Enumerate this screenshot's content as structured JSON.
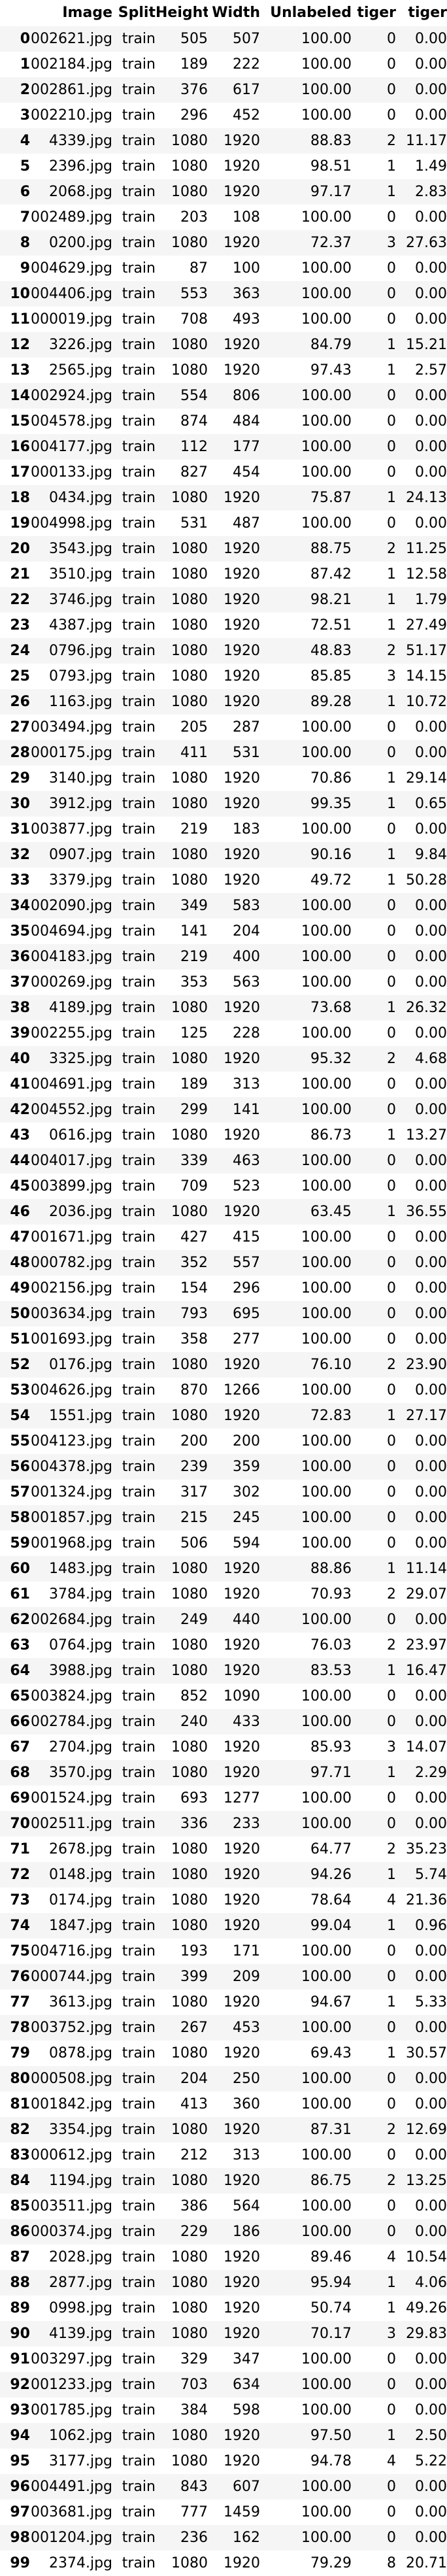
{
  "table": {
    "columns": [
      "",
      "Image",
      "Split",
      "Height",
      "Width",
      "Unlabeled",
      "tiger",
      "tiger"
    ],
    "rows": [
      [
        "0",
        "002621.jpg",
        "train",
        "505",
        "507",
        "100.00",
        "0",
        "0.00"
      ],
      [
        "1",
        "002184.jpg",
        "train",
        "189",
        "222",
        "100.00",
        "0",
        "0.00"
      ],
      [
        "2",
        "002861.jpg",
        "train",
        "376",
        "617",
        "100.00",
        "0",
        "0.00"
      ],
      [
        "3",
        "002210.jpg",
        "train",
        "296",
        "452",
        "100.00",
        "0",
        "0.00"
      ],
      [
        "4",
        "4339.jpg",
        "train",
        "1080",
        "1920",
        "88.83",
        "2",
        "11.17"
      ],
      [
        "5",
        "2396.jpg",
        "train",
        "1080",
        "1920",
        "98.51",
        "1",
        "1.49"
      ],
      [
        "6",
        "2068.jpg",
        "train",
        "1080",
        "1920",
        "97.17",
        "1",
        "2.83"
      ],
      [
        "7",
        "002489.jpg",
        "train",
        "203",
        "108",
        "100.00",
        "0",
        "0.00"
      ],
      [
        "8",
        "0200.jpg",
        "train",
        "1080",
        "1920",
        "72.37",
        "3",
        "27.63"
      ],
      [
        "9",
        "004629.jpg",
        "train",
        "87",
        "100",
        "100.00",
        "0",
        "0.00"
      ],
      [
        "10",
        "004406.jpg",
        "train",
        "553",
        "363",
        "100.00",
        "0",
        "0.00"
      ],
      [
        "11",
        "000019.jpg",
        "train",
        "708",
        "493",
        "100.00",
        "0",
        "0.00"
      ],
      [
        "12",
        "3226.jpg",
        "train",
        "1080",
        "1920",
        "84.79",
        "1",
        "15.21"
      ],
      [
        "13",
        "2565.jpg",
        "train",
        "1080",
        "1920",
        "97.43",
        "1",
        "2.57"
      ],
      [
        "14",
        "002924.jpg",
        "train",
        "554",
        "806",
        "100.00",
        "0",
        "0.00"
      ],
      [
        "15",
        "004578.jpg",
        "train",
        "874",
        "484",
        "100.00",
        "0",
        "0.00"
      ],
      [
        "16",
        "004177.jpg",
        "train",
        "112",
        "177",
        "100.00",
        "0",
        "0.00"
      ],
      [
        "17",
        "000133.jpg",
        "train",
        "827",
        "454",
        "100.00",
        "0",
        "0.00"
      ],
      [
        "18",
        "0434.jpg",
        "train",
        "1080",
        "1920",
        "75.87",
        "1",
        "24.13"
      ],
      [
        "19",
        "004998.jpg",
        "train",
        "531",
        "487",
        "100.00",
        "0",
        "0.00"
      ],
      [
        "20",
        "3543.jpg",
        "train",
        "1080",
        "1920",
        "88.75",
        "2",
        "11.25"
      ],
      [
        "21",
        "3510.jpg",
        "train",
        "1080",
        "1920",
        "87.42",
        "1",
        "12.58"
      ],
      [
        "22",
        "3746.jpg",
        "train",
        "1080",
        "1920",
        "98.21",
        "1",
        "1.79"
      ],
      [
        "23",
        "4387.jpg",
        "train",
        "1080",
        "1920",
        "72.51",
        "1",
        "27.49"
      ],
      [
        "24",
        "0796.jpg",
        "train",
        "1080",
        "1920",
        "48.83",
        "2",
        "51.17"
      ],
      [
        "25",
        "0793.jpg",
        "train",
        "1080",
        "1920",
        "85.85",
        "3",
        "14.15"
      ],
      [
        "26",
        "1163.jpg",
        "train",
        "1080",
        "1920",
        "89.28",
        "1",
        "10.72"
      ],
      [
        "27",
        "003494.jpg",
        "train",
        "205",
        "287",
        "100.00",
        "0",
        "0.00"
      ],
      [
        "28",
        "000175.jpg",
        "train",
        "411",
        "531",
        "100.00",
        "0",
        "0.00"
      ],
      [
        "29",
        "3140.jpg",
        "train",
        "1080",
        "1920",
        "70.86",
        "1",
        "29.14"
      ],
      [
        "30",
        "3912.jpg",
        "train",
        "1080",
        "1920",
        "99.35",
        "1",
        "0.65"
      ],
      [
        "31",
        "003877.jpg",
        "train",
        "219",
        "183",
        "100.00",
        "0",
        "0.00"
      ],
      [
        "32",
        "0907.jpg",
        "train",
        "1080",
        "1920",
        "90.16",
        "1",
        "9.84"
      ],
      [
        "33",
        "3379.jpg",
        "train",
        "1080",
        "1920",
        "49.72",
        "1",
        "50.28"
      ],
      [
        "34",
        "002090.jpg",
        "train",
        "349",
        "583",
        "100.00",
        "0",
        "0.00"
      ],
      [
        "35",
        "004694.jpg",
        "train",
        "141",
        "204",
        "100.00",
        "0",
        "0.00"
      ],
      [
        "36",
        "004183.jpg",
        "train",
        "219",
        "400",
        "100.00",
        "0",
        "0.00"
      ],
      [
        "37",
        "000269.jpg",
        "train",
        "353",
        "563",
        "100.00",
        "0",
        "0.00"
      ],
      [
        "38",
        "4189.jpg",
        "train",
        "1080",
        "1920",
        "73.68",
        "1",
        "26.32"
      ],
      [
        "39",
        "002255.jpg",
        "train",
        "125",
        "228",
        "100.00",
        "0",
        "0.00"
      ],
      [
        "40",
        "3325.jpg",
        "train",
        "1080",
        "1920",
        "95.32",
        "2",
        "4.68"
      ],
      [
        "41",
        "004691.jpg",
        "train",
        "189",
        "313",
        "100.00",
        "0",
        "0.00"
      ],
      [
        "42",
        "004552.jpg",
        "train",
        "299",
        "141",
        "100.00",
        "0",
        "0.00"
      ],
      [
        "43",
        "0616.jpg",
        "train",
        "1080",
        "1920",
        "86.73",
        "1",
        "13.27"
      ],
      [
        "44",
        "004017.jpg",
        "train",
        "339",
        "463",
        "100.00",
        "0",
        "0.00"
      ],
      [
        "45",
        "003899.jpg",
        "train",
        "709",
        "523",
        "100.00",
        "0",
        "0.00"
      ],
      [
        "46",
        "2036.jpg",
        "train",
        "1080",
        "1920",
        "63.45",
        "1",
        "36.55"
      ],
      [
        "47",
        "001671.jpg",
        "train",
        "427",
        "415",
        "100.00",
        "0",
        "0.00"
      ],
      [
        "48",
        "000782.jpg",
        "train",
        "352",
        "557",
        "100.00",
        "0",
        "0.00"
      ],
      [
        "49",
        "002156.jpg",
        "train",
        "154",
        "296",
        "100.00",
        "0",
        "0.00"
      ],
      [
        "50",
        "003634.jpg",
        "train",
        "793",
        "695",
        "100.00",
        "0",
        "0.00"
      ],
      [
        "51",
        "001693.jpg",
        "train",
        "358",
        "277",
        "100.00",
        "0",
        "0.00"
      ],
      [
        "52",
        "0176.jpg",
        "train",
        "1080",
        "1920",
        "76.10",
        "2",
        "23.90"
      ],
      [
        "53",
        "004626.jpg",
        "train",
        "870",
        "1266",
        "100.00",
        "0",
        "0.00"
      ],
      [
        "54",
        "1551.jpg",
        "train",
        "1080",
        "1920",
        "72.83",
        "1",
        "27.17"
      ],
      [
        "55",
        "004123.jpg",
        "train",
        "200",
        "200",
        "100.00",
        "0",
        "0.00"
      ],
      [
        "56",
        "004378.jpg",
        "train",
        "239",
        "359",
        "100.00",
        "0",
        "0.00"
      ],
      [
        "57",
        "001324.jpg",
        "train",
        "317",
        "302",
        "100.00",
        "0",
        "0.00"
      ],
      [
        "58",
        "001857.jpg",
        "train",
        "215",
        "245",
        "100.00",
        "0",
        "0.00"
      ],
      [
        "59",
        "001968.jpg",
        "train",
        "506",
        "594",
        "100.00",
        "0",
        "0.00"
      ],
      [
        "60",
        "1483.jpg",
        "train",
        "1080",
        "1920",
        "88.86",
        "1",
        "11.14"
      ],
      [
        "61",
        "3784.jpg",
        "train",
        "1080",
        "1920",
        "70.93",
        "2",
        "29.07"
      ],
      [
        "62",
        "002684.jpg",
        "train",
        "249",
        "440",
        "100.00",
        "0",
        "0.00"
      ],
      [
        "63",
        "0764.jpg",
        "train",
        "1080",
        "1920",
        "76.03",
        "2",
        "23.97"
      ],
      [
        "64",
        "3988.jpg",
        "train",
        "1080",
        "1920",
        "83.53",
        "1",
        "16.47"
      ],
      [
        "65",
        "003824.jpg",
        "train",
        "852",
        "1090",
        "100.00",
        "0",
        "0.00"
      ],
      [
        "66",
        "002784.jpg",
        "train",
        "240",
        "433",
        "100.00",
        "0",
        "0.00"
      ],
      [
        "67",
        "2704.jpg",
        "train",
        "1080",
        "1920",
        "85.93",
        "3",
        "14.07"
      ],
      [
        "68",
        "3570.jpg",
        "train",
        "1080",
        "1920",
        "97.71",
        "1",
        "2.29"
      ],
      [
        "69",
        "001524.jpg",
        "train",
        "693",
        "1277",
        "100.00",
        "0",
        "0.00"
      ],
      [
        "70",
        "002511.jpg",
        "train",
        "336",
        "233",
        "100.00",
        "0",
        "0.00"
      ],
      [
        "71",
        "2678.jpg",
        "train",
        "1080",
        "1920",
        "64.77",
        "2",
        "35.23"
      ],
      [
        "72",
        "0148.jpg",
        "train",
        "1080",
        "1920",
        "94.26",
        "1",
        "5.74"
      ],
      [
        "73",
        "0174.jpg",
        "train",
        "1080",
        "1920",
        "78.64",
        "4",
        "21.36"
      ],
      [
        "74",
        "1847.jpg",
        "train",
        "1080",
        "1920",
        "99.04",
        "1",
        "0.96"
      ],
      [
        "75",
        "004716.jpg",
        "train",
        "193",
        "171",
        "100.00",
        "0",
        "0.00"
      ],
      [
        "76",
        "000744.jpg",
        "train",
        "399",
        "209",
        "100.00",
        "0",
        "0.00"
      ],
      [
        "77",
        "3613.jpg",
        "train",
        "1080",
        "1920",
        "94.67",
        "1",
        "5.33"
      ],
      [
        "78",
        "003752.jpg",
        "train",
        "267",
        "453",
        "100.00",
        "0",
        "0.00"
      ],
      [
        "79",
        "0878.jpg",
        "train",
        "1080",
        "1920",
        "69.43",
        "1",
        "30.57"
      ],
      [
        "80",
        "000508.jpg",
        "train",
        "204",
        "250",
        "100.00",
        "0",
        "0.00"
      ],
      [
        "81",
        "001842.jpg",
        "train",
        "413",
        "360",
        "100.00",
        "0",
        "0.00"
      ],
      [
        "82",
        "3354.jpg",
        "train",
        "1080",
        "1920",
        "87.31",
        "2",
        "12.69"
      ],
      [
        "83",
        "000612.jpg",
        "train",
        "212",
        "313",
        "100.00",
        "0",
        "0.00"
      ],
      [
        "84",
        "1194.jpg",
        "train",
        "1080",
        "1920",
        "86.75",
        "2",
        "13.25"
      ],
      [
        "85",
        "003511.jpg",
        "train",
        "386",
        "564",
        "100.00",
        "0",
        "0.00"
      ],
      [
        "86",
        "000374.jpg",
        "train",
        "229",
        "186",
        "100.00",
        "0",
        "0.00"
      ],
      [
        "87",
        "2028.jpg",
        "train",
        "1080",
        "1920",
        "89.46",
        "4",
        "10.54"
      ],
      [
        "88",
        "2877.jpg",
        "train",
        "1080",
        "1920",
        "95.94",
        "1",
        "4.06"
      ],
      [
        "89",
        "0998.jpg",
        "train",
        "1080",
        "1920",
        "50.74",
        "1",
        "49.26"
      ],
      [
        "90",
        "4139.jpg",
        "train",
        "1080",
        "1920",
        "70.17",
        "3",
        "29.83"
      ],
      [
        "91",
        "003297.jpg",
        "train",
        "329",
        "347",
        "100.00",
        "0",
        "0.00"
      ],
      [
        "92",
        "001233.jpg",
        "train",
        "703",
        "634",
        "100.00",
        "0",
        "0.00"
      ],
      [
        "93",
        "001785.jpg",
        "train",
        "384",
        "598",
        "100.00",
        "0",
        "0.00"
      ],
      [
        "94",
        "1062.jpg",
        "train",
        "1080",
        "1920",
        "97.50",
        "1",
        "2.50"
      ],
      [
        "95",
        "3177.jpg",
        "train",
        "1080",
        "1920",
        "94.78",
        "4",
        "5.22"
      ],
      [
        "96",
        "004491.jpg",
        "train",
        "843",
        "607",
        "100.00",
        "0",
        "0.00"
      ],
      [
        "97",
        "003681.jpg",
        "train",
        "777",
        "1459",
        "100.00",
        "0",
        "0.00"
      ],
      [
        "98",
        "001204.jpg",
        "train",
        "236",
        "162",
        "100.00",
        "0",
        "0.00"
      ],
      [
        "99",
        "2374.jpg",
        "train",
        "1080",
        "1920",
        "79.29",
        "8",
        "20.71"
      ]
    ]
  }
}
